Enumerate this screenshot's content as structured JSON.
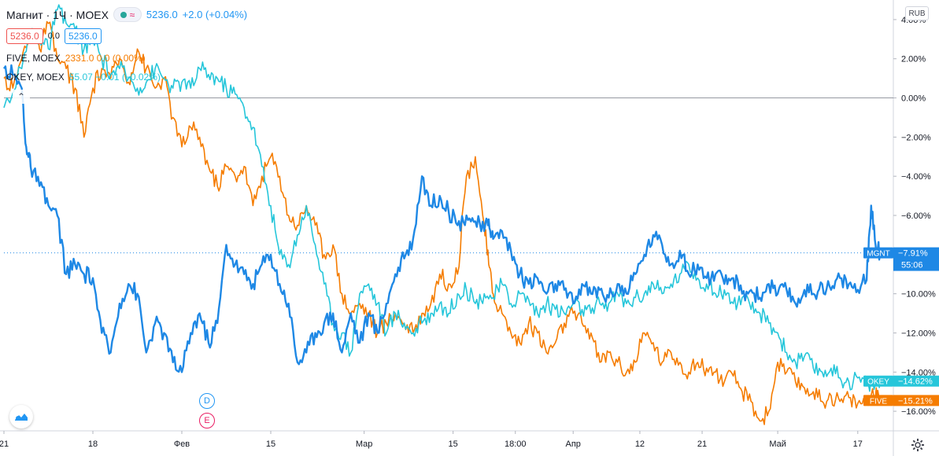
{
  "header": {
    "symbol_title": "Магнит · 1Ч · MOEX",
    "last_text": "5236.0",
    "change_text": "+2.0 (+0.04%)",
    "sell_price": "5236.0",
    "spread": "0.0",
    "buy_price": "5236.0",
    "currency": "RUB"
  },
  "overlays": [
    {
      "name": "FIVE, MOEX",
      "value_text": "2331.0  0.0 (0.00%)",
      "color": "#f57c00"
    },
    {
      "name": "OKEY, MOEX",
      "value_text": "55.07 −0.01 (−0.02%)",
      "color": "#26c6da"
    }
  ],
  "icons": {
    "collapse": "chevron-up-icon",
    "logo": "tradingview-cloud-icon",
    "settings": "gear-icon"
  },
  "events": [
    {
      "letter": "D",
      "color": "#2196f3"
    },
    {
      "letter": "E",
      "color": "#e91e63"
    }
  ],
  "chart_data": {
    "type": "line",
    "y_unit": "%",
    "ylim": [
      -17,
      5
    ],
    "y_ticks": [
      "4.00%",
      "2.00%",
      "0.00%",
      "−2.00%",
      "−4.00%",
      "−6.00%",
      "−8.00%",
      "−10.00%",
      "−12.00%",
      "−14.00%",
      "−16.00%"
    ],
    "y_tick_values": [
      4,
      2,
      0,
      -2,
      -4,
      -6,
      -8,
      -10,
      -12,
      -14,
      -16
    ],
    "x_ticks": [
      "21",
      "18",
      "Фев",
      "15",
      "Мар",
      "15",
      "18:00",
      "Апр",
      "12",
      "21",
      "Май",
      "17"
    ],
    "x_tick_positions": [
      0,
      0.1,
      0.2,
      0.3,
      0.405,
      0.505,
      0.575,
      0.64,
      0.715,
      0.785,
      0.87,
      0.96
    ],
    "x_domain": [
      0,
      1
    ],
    "series": [
      {
        "name": "MGNT",
        "color": "#1e88e5",
        "width": 2.4,
        "x": [
          0,
          0.01,
          0.02,
          0.025,
          0.03,
          0.04,
          0.05,
          0.06,
          0.07,
          0.08,
          0.09,
          0.1,
          0.11,
          0.12,
          0.13,
          0.14,
          0.15,
          0.16,
          0.17,
          0.18,
          0.19,
          0.2,
          0.21,
          0.22,
          0.23,
          0.24,
          0.25,
          0.26,
          0.27,
          0.28,
          0.29,
          0.3,
          0.31,
          0.32,
          0.33,
          0.34,
          0.35,
          0.36,
          0.37,
          0.38,
          0.39,
          0.4,
          0.41,
          0.42,
          0.43,
          0.44,
          0.45,
          0.46,
          0.47,
          0.48,
          0.49,
          0.5,
          0.51,
          0.52,
          0.53,
          0.54,
          0.545,
          0.55,
          0.56,
          0.57,
          0.58,
          0.59,
          0.6,
          0.61,
          0.62,
          0.63,
          0.64,
          0.65,
          0.66,
          0.67,
          0.68,
          0.69,
          0.7,
          0.71,
          0.72,
          0.73,
          0.74,
          0.75,
          0.76,
          0.77,
          0.78,
          0.79,
          0.8,
          0.81,
          0.82,
          0.83,
          0.84,
          0.85,
          0.86,
          0.87,
          0.88,
          0.89,
          0.9,
          0.91,
          0.92,
          0.93,
          0.94,
          0.95,
          0.96,
          0.97,
          0.975,
          0.98,
          0.985
        ],
        "y": [
          1.5,
          1.2,
          0.5,
          -2.5,
          -3.5,
          -4.5,
          -5.5,
          -6.0,
          -9.0,
          -8.5,
          -9.0,
          -9.2,
          -12.0,
          -13.0,
          -10.5,
          -9.5,
          -10.0,
          -13.0,
          -11.5,
          -12.0,
          -13.5,
          -14.0,
          -12.0,
          -11.0,
          -12.5,
          -11.5,
          -7.5,
          -8.5,
          -9.0,
          -9.5,
          -8.5,
          -8.0,
          -9.5,
          -10.5,
          -13.5,
          -13.0,
          -12.0,
          -11.5,
          -11.0,
          -13.0,
          -11.0,
          -12.5,
          -11.0,
          -12.0,
          -10.5,
          -9.0,
          -8.2,
          -7.2,
          -4.0,
          -5.5,
          -5.0,
          -5.8,
          -6.5,
          -6.0,
          -6.3,
          -6.8,
          -6.2,
          -7.2,
          -6.8,
          -7.8,
          -9.0,
          -9.5,
          -9.2,
          -10.0,
          -9.5,
          -9.8,
          -10.5,
          -9.5,
          -10.0,
          -9.8,
          -10.2,
          -9.5,
          -10.0,
          -9.0,
          -8.0,
          -7.0,
          -7.5,
          -8.5,
          -7.8,
          -9.0,
          -8.5,
          -9.2,
          -9.0,
          -9.5,
          -9.2,
          -10.0,
          -9.8,
          -10.2,
          -9.5,
          -10.0,
          -9.8,
          -10.5,
          -9.8,
          -10.0,
          -9.5,
          -9.8,
          -9.2,
          -9.5,
          -9.8,
          -9.3,
          -5.5,
          -7.5,
          -7.91
        ]
      },
      {
        "name": "OKEY",
        "color": "#26c6da",
        "width": 1.6,
        "x": [
          0,
          0.02,
          0.03,
          0.04,
          0.05,
          0.06,
          0.07,
          0.08,
          0.09,
          0.1,
          0.11,
          0.12,
          0.13,
          0.14,
          0.15,
          0.16,
          0.17,
          0.18,
          0.19,
          0.2,
          0.21,
          0.22,
          0.23,
          0.24,
          0.25,
          0.26,
          0.27,
          0.28,
          0.29,
          0.3,
          0.31,
          0.32,
          0.33,
          0.34,
          0.35,
          0.36,
          0.37,
          0.38,
          0.39,
          0.4,
          0.41,
          0.42,
          0.43,
          0.44,
          0.45,
          0.46,
          0.47,
          0.48,
          0.49,
          0.5,
          0.51,
          0.52,
          0.53,
          0.54,
          0.55,
          0.56,
          0.57,
          0.58,
          0.59,
          0.6,
          0.61,
          0.62,
          0.63,
          0.64,
          0.65,
          0.66,
          0.67,
          0.68,
          0.69,
          0.7,
          0.71,
          0.72,
          0.73,
          0.74,
          0.75,
          0.76,
          0.77,
          0.78,
          0.79,
          0.8,
          0.81,
          0.82,
          0.83,
          0.84,
          0.85,
          0.86,
          0.87,
          0.88,
          0.89,
          0.9,
          0.91,
          0.92,
          0.93,
          0.94,
          0.95,
          0.96,
          0.97,
          0.98,
          0.985
        ],
        "y": [
          -0.5,
          1.5,
          3.5,
          3.0,
          2.5,
          4.5,
          3.8,
          3.5,
          2.5,
          3.0,
          2.0,
          1.2,
          1.5,
          1.0,
          0.5,
          0.8,
          1.5,
          1.0,
          0.5,
          0.8,
          0.5,
          1.5,
          1.2,
          1.0,
          0.5,
          0.2,
          -0.5,
          -1.5,
          -3.5,
          -5.5,
          -8.0,
          -8.5,
          -7.0,
          -5.5,
          -7.5,
          -9.5,
          -11.5,
          -12.0,
          -13.0,
          -10.0,
          -9.5,
          -10.5,
          -12.0,
          -11.0,
          -11.5,
          -12.0,
          -11.5,
          -11.0,
          -10.5,
          -11.0,
          -10.0,
          -9.8,
          -10.5,
          -10.0,
          -10.2,
          -9.5,
          -10.5,
          -10.0,
          -10.3,
          -11.0,
          -10.5,
          -10.8,
          -11.0,
          -10.5,
          -10.8,
          -11.0,
          -10.5,
          -10.5,
          -10.0,
          -10.5,
          -10.2,
          -10.0,
          -9.5,
          -10.0,
          -9.5,
          -9.0,
          -8.5,
          -9.2,
          -9.5,
          -10.0,
          -9.8,
          -10.5,
          -10.2,
          -10.8,
          -11.0,
          -11.5,
          -12.0,
          -13.0,
          -13.5,
          -13.2,
          -13.8,
          -14.0,
          -13.8,
          -14.3,
          -14.5,
          -14.3,
          -14.6,
          -14.6,
          -14.62
        ]
      },
      {
        "name": "FIVE",
        "color": "#f57c00",
        "width": 1.6,
        "x": [
          0,
          0.01,
          0.02,
          0.03,
          0.04,
          0.05,
          0.06,
          0.07,
          0.08,
          0.09,
          0.1,
          0.11,
          0.12,
          0.13,
          0.14,
          0.15,
          0.16,
          0.17,
          0.18,
          0.19,
          0.2,
          0.21,
          0.22,
          0.23,
          0.24,
          0.25,
          0.26,
          0.27,
          0.28,
          0.29,
          0.3,
          0.31,
          0.32,
          0.33,
          0.34,
          0.35,
          0.36,
          0.37,
          0.38,
          0.39,
          0.4,
          0.41,
          0.42,
          0.43,
          0.44,
          0.45,
          0.46,
          0.47,
          0.48,
          0.49,
          0.5,
          0.51,
          0.52,
          0.53,
          0.54,
          0.545,
          0.55,
          0.56,
          0.57,
          0.58,
          0.59,
          0.6,
          0.61,
          0.62,
          0.63,
          0.64,
          0.65,
          0.66,
          0.67,
          0.68,
          0.69,
          0.7,
          0.71,
          0.72,
          0.73,
          0.74,
          0.75,
          0.76,
          0.77,
          0.78,
          0.79,
          0.8,
          0.81,
          0.82,
          0.83,
          0.84,
          0.85,
          0.86,
          0.87,
          0.88,
          0.89,
          0.9,
          0.91,
          0.92,
          0.93,
          0.94,
          0.95,
          0.96,
          0.97,
          0.98,
          0.985
        ],
        "y": [
          1.0,
          0.5,
          2.0,
          3.5,
          2.5,
          3.8,
          2.0,
          1.5,
          0.5,
          -2.0,
          0.5,
          1.5,
          1.0,
          2.0,
          0.8,
          2.5,
          1.5,
          0.5,
          1.0,
          -1.0,
          -2.5,
          -1.5,
          -2.0,
          -3.5,
          -4.5,
          -3.5,
          -4.0,
          -3.5,
          -5.5,
          -4.0,
          -3.0,
          -4.0,
          -6.0,
          -6.5,
          -5.5,
          -6.5,
          -8.0,
          -7.5,
          -10.0,
          -11.0,
          -10.5,
          -11.0,
          -12.0,
          -11.5,
          -11.0,
          -11.5,
          -12.0,
          -11.0,
          -10.5,
          -9.0,
          -9.5,
          -9.0,
          -4.0,
          -3.0,
          -6.5,
          -8.5,
          -10.0,
          -11.0,
          -12.0,
          -12.5,
          -11.5,
          -12.0,
          -13.0,
          -12.5,
          -11.5,
          -11.0,
          -11.5,
          -12.0,
          -13.5,
          -13.0,
          -13.5,
          -14.0,
          -13.5,
          -12.0,
          -12.5,
          -13.5,
          -13.0,
          -13.5,
          -14.0,
          -13.5,
          -13.8,
          -14.0,
          -14.5,
          -14.2,
          -15.0,
          -15.5,
          -16.5,
          -16.0,
          -13.5,
          -14.0,
          -14.5,
          -14.8,
          -15.0,
          -15.5,
          -15.2,
          -15.5,
          -15.3,
          -15.6,
          -15.5,
          -15.2,
          -15.21
        ]
      }
    ],
    "last_labels": [
      {
        "series": "MGNT",
        "name": "MGNT",
        "value_text": "−7.91%",
        "sub_text": "55:06",
        "y": -7.91,
        "color": "#1e88e5"
      },
      {
        "series": "OKEY",
        "name": "OKEY",
        "value_text": "−14.62%",
        "sub_text": "",
        "y": -14.62,
        "color": "#26c6da"
      },
      {
        "series": "FIVE",
        "name": "FIVE",
        "value_text": "−15.21%",
        "sub_text": "",
        "y": -15.21,
        "color": "#f57c00"
      }
    ],
    "dotted_level": -7.91,
    "zero_line": 0
  }
}
